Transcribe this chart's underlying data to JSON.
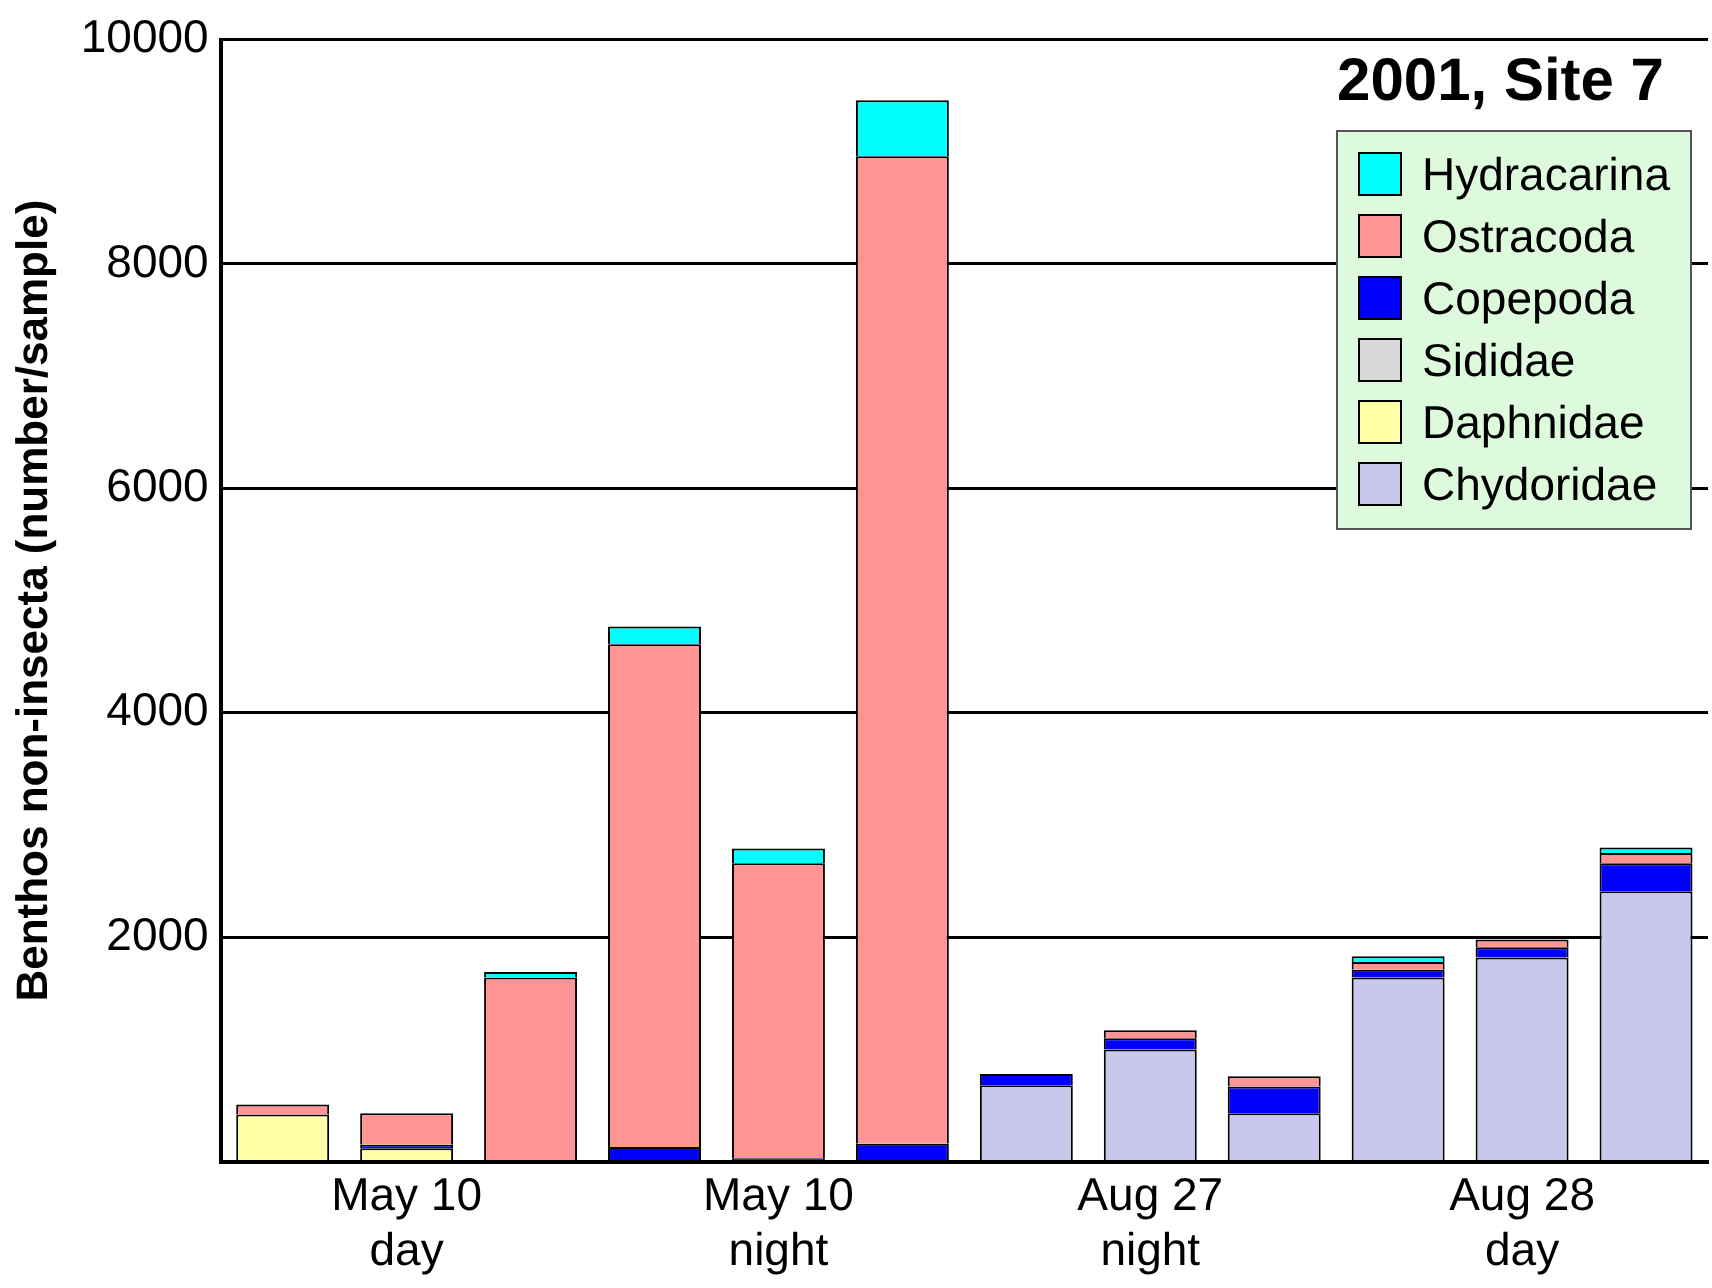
{
  "chart_data": {
    "type": "bar",
    "stacked": true,
    "title": "2001, Site 7",
    "ylabel": "Benthos non-insecta (number/sample)",
    "categories": [
      null,
      "May 10\nday",
      null,
      null,
      "May 10\nnight",
      null,
      null,
      "Aug 27\nnight",
      null,
      null,
      "Aug 28\nday",
      null
    ],
    "series": [
      {
        "name": "Chydoridae",
        "color": "#c8c8ec",
        "values": [
          null,
          null,
          null,
          null,
          null,
          null,
          680,
          1000,
          430,
          1640,
          1820,
          2410
        ]
      },
      {
        "name": "Daphnidae",
        "color": "#ffffa8",
        "values": [
          420,
          120,
          null,
          null,
          null,
          null,
          null,
          null,
          null,
          null,
          null,
          null
        ]
      },
      {
        "name": "Sididae",
        "color": "#d8d8d8",
        "values": [
          null,
          null,
          null,
          null,
          null,
          null,
          null,
          null,
          null,
          null,
          null,
          null
        ]
      },
      {
        "name": "Copepoda",
        "color": "#0000ff",
        "values": [
          null,
          30,
          null,
          130,
          30,
          160,
          100,
          100,
          240,
          70,
          90,
          250
        ]
      },
      {
        "name": "Ostracoda",
        "color": "#ff9494",
        "values": [
          90,
          280,
          1640,
          4480,
          2630,
          8800,
          null,
          70,
          90,
          70,
          70,
          90
        ]
      },
      {
        "name": "Hydracarina",
        "color": "#00ffff",
        "values": [
          null,
          null,
          50,
          160,
          130,
          500,
          null,
          null,
          null,
          50,
          null,
          50
        ]
      }
    ],
    "ylim": [
      0,
      10000
    ],
    "yticks": [
      {
        "value": 0,
        "label": null
      },
      2000,
      4000,
      6000,
      8000,
      10000
    ],
    "grid": "y",
    "legend": "top right"
  }
}
